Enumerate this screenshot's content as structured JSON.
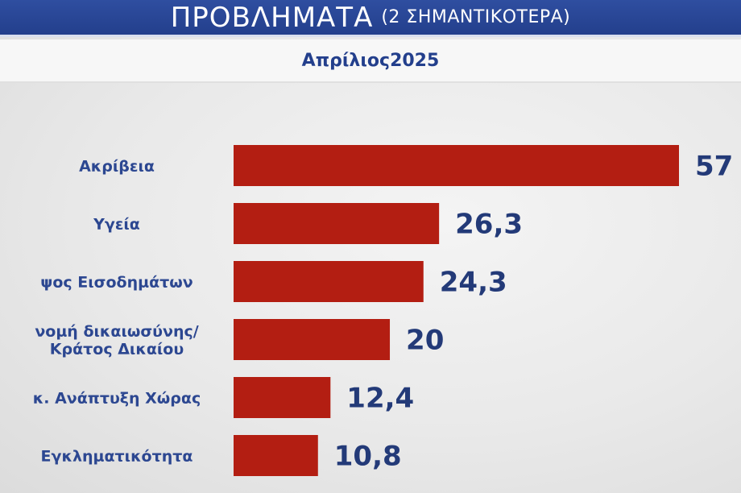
{
  "header": {
    "title": "ΠΡΟΒΛΗΜΑΤΑ",
    "subtitle": "(2 ΣΗΜΑΝΤΙΚΟΤΕΡΑ)"
  },
  "period_label": "Απρίλιος2025",
  "colors": {
    "header_blue": "#2f4ea0",
    "bar_red": "#b31e12",
    "label_blue": "#2c4791",
    "value_navy": "#233a78"
  },
  "chart_data": {
    "type": "bar",
    "orientation": "horizontal",
    "title": "ΠΡΟΒΛΗΜΑΤΑ (2 ΣΗΜΑΝΤΙΚΟΤΕΡΑ)",
    "subtitle": "Απρίλιος2025",
    "categories": [
      [
        "Ακρίβεια"
      ],
      [
        "Υγεία"
      ],
      [
        "ψος Εισοδημάτων"
      ],
      [
        "νομή δικαιωσύνης/",
        "Κράτος Δικαίου"
      ],
      [
        "κ. Ανάπτυξη Χώρας"
      ],
      [
        "Εγκληματικότητα"
      ]
    ],
    "values": [
      57,
      26.3,
      24.3,
      20,
      12.4,
      10.8
    ],
    "value_labels": [
      "57",
      "26,3",
      "24,3",
      "20",
      "12,4",
      "10,8"
    ],
    "xlim": [
      0,
      57
    ],
    "grid": false,
    "legend": "none"
  }
}
